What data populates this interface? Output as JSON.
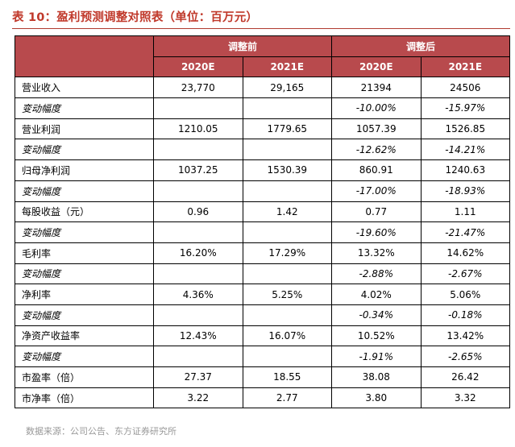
{
  "title": "表 10：盈利预测调整对照表（单位：百万元）",
  "header": {
    "group_before": "调整前",
    "group_after": "调整后",
    "years": [
      "2020E",
      "2021E",
      "2020E",
      "2021E"
    ]
  },
  "rows": [
    {
      "label": "营业收入",
      "values": [
        "23,770",
        "29,165",
        "21394",
        "24506"
      ],
      "italic": false
    },
    {
      "label": "变动幅度",
      "values": [
        "",
        "",
        "-10.00%",
        "-15.97%"
      ],
      "italic": true
    },
    {
      "label": "营业利润",
      "values": [
        "1210.05",
        "1779.65",
        "1057.39",
        "1526.85"
      ],
      "italic": false
    },
    {
      "label": "变动幅度",
      "values": [
        "",
        "",
        "-12.62%",
        "-14.21%"
      ],
      "italic": true
    },
    {
      "label": "归母净利润",
      "values": [
        "1037.25",
        "1530.39",
        "860.91",
        "1240.63"
      ],
      "italic": false
    },
    {
      "label": "变动幅度",
      "values": [
        "",
        "",
        "-17.00%",
        "-18.93%"
      ],
      "italic": true
    },
    {
      "label": "每股收益（元）",
      "values": [
        "0.96",
        "1.42",
        "0.77",
        "1.11"
      ],
      "italic": false
    },
    {
      "label": "变动幅度",
      "values": [
        "",
        "",
        "-19.60%",
        "-21.47%"
      ],
      "italic": true
    },
    {
      "label": "毛利率",
      "values": [
        "16.20%",
        "17.29%",
        "13.32%",
        "14.62%"
      ],
      "italic": false
    },
    {
      "label": "变动幅度",
      "values": [
        "",
        "",
        "-2.88%",
        "-2.67%"
      ],
      "italic": true
    },
    {
      "label": "净利率",
      "values": [
        "4.36%",
        "5.25%",
        "4.02%",
        "5.06%"
      ],
      "italic": false
    },
    {
      "label": "变动幅度",
      "values": [
        "",
        "",
        "-0.34%",
        "-0.18%"
      ],
      "italic": true
    },
    {
      "label": "净资产收益率",
      "values": [
        "12.43%",
        "16.07%",
        "10.52%",
        "13.42%"
      ],
      "italic": false
    },
    {
      "label": "变动幅度",
      "values": [
        "",
        "",
        "-1.91%",
        "-2.65%"
      ],
      "italic": true
    },
    {
      "label": "市盈率（倍）",
      "values": [
        "27.37",
        "18.55",
        "38.08",
        "26.42"
      ],
      "italic": false
    },
    {
      "label": "市净率（倍）",
      "values": [
        "3.22",
        "2.77",
        "3.80",
        "3.32"
      ],
      "italic": false
    }
  ],
  "source": "数据来源：公司公告、东方证券研究所"
}
